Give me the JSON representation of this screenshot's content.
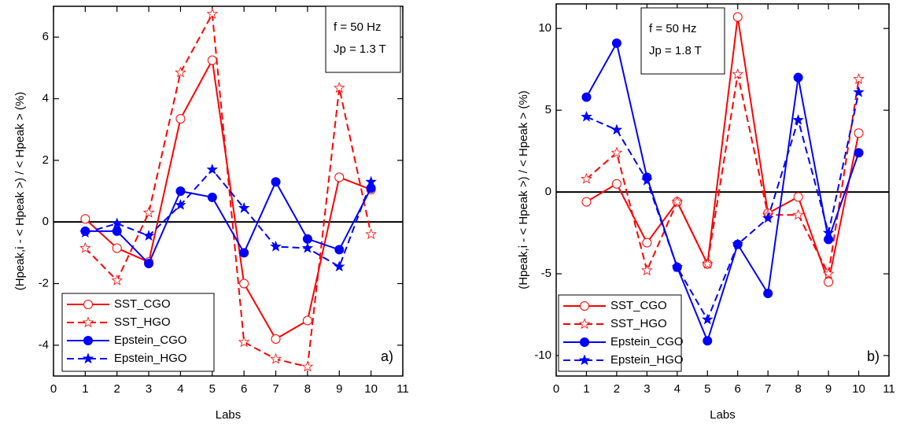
{
  "chart_data": [
    {
      "type": "line",
      "x_label": "Labs",
      "y_label": "(Hpeak,i - < Hpeak >) / < Hpeak > (%)",
      "annotations": [
        "f = 50 Hz",
        "Jp = 1.3 T"
      ],
      "panel_label": "a)",
      "legend": "lower left",
      "hline": 0,
      "x": [
        1,
        2,
        3,
        4,
        5,
        6,
        7,
        8,
        9,
        10
      ],
      "xlim": [
        0,
        11
      ],
      "xticks": [
        0,
        1,
        2,
        3,
        4,
        5,
        6,
        7,
        8,
        9,
        10,
        11
      ],
      "ylim": [
        -5,
        7
      ],
      "yticks": [
        -4,
        -2,
        0,
        2,
        4,
        6
      ],
      "series": [
        {
          "name": "SST_CGO",
          "color": "#ff0000",
          "line_style": "solid",
          "marker": "open-circle",
          "values": [
            0.1,
            -0.85,
            -1.3,
            3.35,
            5.25,
            -2.0,
            -3.8,
            -3.2,
            1.45,
            1.05
          ]
        },
        {
          "name": "SST_HGO",
          "color": "#ff0000",
          "line_style": "dashed",
          "marker": "open-star",
          "values": [
            -0.85,
            -1.9,
            0.3,
            4.85,
            6.75,
            -3.9,
            -4.45,
            -4.7,
            4.35,
            -0.4
          ]
        },
        {
          "name": "Epstein_CGO",
          "color": "#0000ff",
          "line_style": "solid",
          "marker": "filled-circle",
          "values": [
            -0.3,
            -0.3,
            -1.35,
            1.0,
            0.8,
            -1.0,
            1.3,
            -0.55,
            -0.9,
            1.1
          ]
        },
        {
          "name": "Epstein_HGO",
          "color": "#0000ff",
          "line_style": "dashed",
          "marker": "filled-star",
          "values": [
            -0.35,
            -0.05,
            -0.45,
            0.55,
            1.7,
            0.45,
            -0.8,
            -0.85,
            -1.45,
            1.3
          ]
        }
      ]
    },
    {
      "type": "line",
      "x_label": "Labs",
      "y_label": "(Hpeak,i - < Hpeak >) / < Hpeak > (%)",
      "annotations": [
        "f = 50 Hz",
        "Jp = 1.8 T"
      ],
      "panel_label": "b)",
      "legend": "lower left",
      "hline": 0,
      "x": [
        1,
        2,
        3,
        4,
        5,
        6,
        7,
        8,
        9,
        10
      ],
      "xlim": [
        0,
        11
      ],
      "xticks": [
        0,
        1,
        2,
        3,
        4,
        5,
        6,
        7,
        8,
        9,
        10,
        11
      ],
      "ylim": [
        -11.25,
        11.5
      ],
      "yticks": [
        -10,
        -5,
        0,
        5,
        10
      ],
      "series": [
        {
          "name": "SST_CGO",
          "color": "#ff0000",
          "line_style": "solid",
          "marker": "open-circle",
          "values": [
            -0.6,
            0.5,
            -3.1,
            -0.6,
            -4.4,
            10.7,
            -1.3,
            -0.3,
            -5.5,
            3.6
          ]
        },
        {
          "name": "SST_HGO",
          "color": "#ff0000",
          "line_style": "dashed",
          "marker": "open-star",
          "values": [
            0.8,
            2.4,
            -4.8,
            -0.6,
            -4.4,
            7.2,
            -1.4,
            -1.4,
            -5.0,
            6.9
          ]
        },
        {
          "name": "Epstein_CGO",
          "color": "#0000ff",
          "line_style": "solid",
          "marker": "filled-circle",
          "values": [
            5.8,
            9.1,
            0.9,
            -4.6,
            -9.1,
            -3.2,
            -6.2,
            7.0,
            -2.9,
            2.4
          ]
        },
        {
          "name": "Epstein_HGO",
          "color": "#0000ff",
          "line_style": "dashed",
          "marker": "filled-star",
          "values": [
            4.6,
            3.8,
            0.7,
            -4.6,
            -7.8,
            -3.2,
            -1.6,
            4.4,
            -2.5,
            6.1
          ]
        }
      ]
    }
  ]
}
